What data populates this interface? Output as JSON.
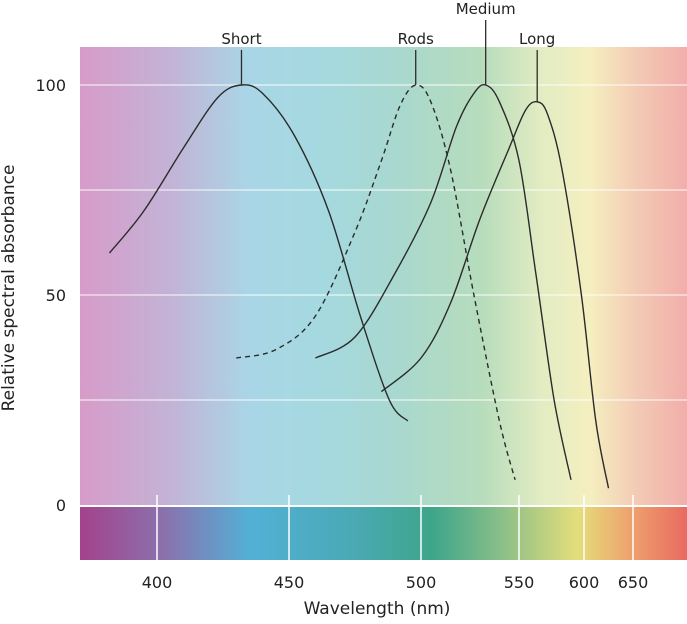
{
  "chart_data": {
    "type": "line",
    "xlabel": "Wavelength (nm)",
    "ylabel": "Relative spectral absorbance",
    "x_ticks": [
      400,
      450,
      500,
      550,
      600,
      650
    ],
    "y_ticks": [
      0,
      50,
      100
    ],
    "ylim": [
      0,
      100
    ],
    "grid": "horizontal",
    "series": [
      {
        "name": "Short",
        "peak_nm": 430,
        "line_style": "solid",
        "points": [
          [
            382,
            60
          ],
          [
            395,
            70
          ],
          [
            410,
            85
          ],
          [
            423,
            97
          ],
          [
            432,
            100
          ],
          [
            440,
            98
          ],
          [
            452,
            88
          ],
          [
            465,
            70
          ],
          [
            477,
            45
          ],
          [
            488,
            25
          ],
          [
            495,
            20
          ]
        ]
      },
      {
        "name": "Rods",
        "peak_nm": 498,
        "line_style": "dashed",
        "points": [
          [
            430,
            35
          ],
          [
            445,
            37
          ],
          [
            460,
            45
          ],
          [
            475,
            65
          ],
          [
            485,
            82
          ],
          [
            492,
            95
          ],
          [
            498,
            100
          ],
          [
            505,
            96
          ],
          [
            515,
            80
          ],
          [
            527,
            50
          ],
          [
            540,
            20
          ],
          [
            548,
            6
          ]
        ]
      },
      {
        "name": "Medium",
        "peak_nm": 533,
        "line_style": "solid",
        "points": [
          [
            460,
            35
          ],
          [
            475,
            40
          ],
          [
            490,
            55
          ],
          [
            505,
            72
          ],
          [
            518,
            90
          ],
          [
            527,
            98
          ],
          [
            533,
            100
          ],
          [
            540,
            96
          ],
          [
            550,
            82
          ],
          [
            563,
            55
          ],
          [
            577,
            25
          ],
          [
            590,
            6
          ]
        ]
      },
      {
        "name": "Long",
        "peak_nm": 564,
        "line_style": "solid",
        "points": [
          [
            485,
            27
          ],
          [
            500,
            35
          ],
          [
            515,
            48
          ],
          [
            530,
            68
          ],
          [
            545,
            85
          ],
          [
            555,
            94
          ],
          [
            564,
            96
          ],
          [
            572,
            93
          ],
          [
            583,
            80
          ],
          [
            598,
            50
          ],
          [
            612,
            20
          ],
          [
            625,
            4
          ]
        ]
      }
    ]
  }
}
